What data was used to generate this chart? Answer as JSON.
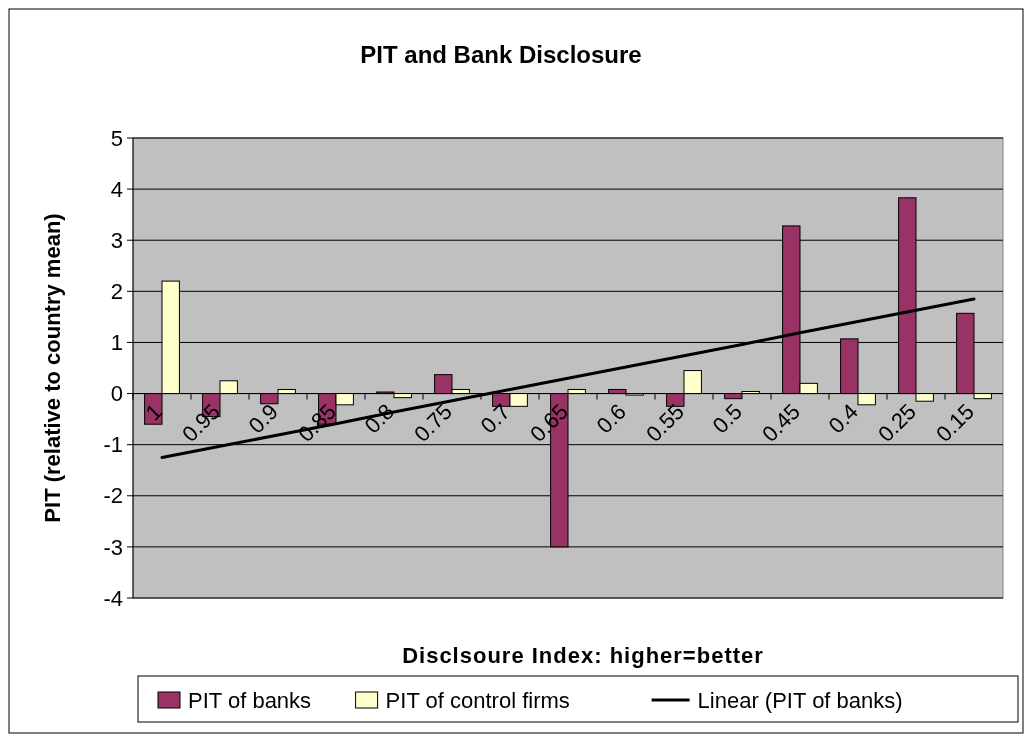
{
  "chart_data": {
    "type": "bar",
    "title": "PIT and Bank Disclosure",
    "xlabel": "Disclsoure Index: higher=better",
    "ylabel": "PIT (relative to country mean)",
    "categories": [
      "1",
      "0.95",
      "0.9",
      "0.85",
      "0.8",
      "0.75",
      "0.7",
      "0.65",
      "0.6",
      "0.55",
      "0.5",
      "0.45",
      "0.4",
      "0.25",
      "0.15"
    ],
    "series": [
      {
        "name": "PIT of banks",
        "color": "#993366",
        "values": [
          -0.6,
          -0.45,
          -0.2,
          -0.6,
          0.03,
          0.37,
          -0.25,
          -3.0,
          0.08,
          -0.25,
          -0.1,
          3.28,
          1.07,
          3.83,
          1.57
        ]
      },
      {
        "name": "PIT of control firms",
        "color": "#ffffcc",
        "values": [
          2.2,
          0.25,
          0.08,
          -0.22,
          -0.08,
          0.08,
          -0.25,
          0.08,
          -0.03,
          0.45,
          0.04,
          0.2,
          -0.22,
          -0.15,
          -0.1
        ]
      },
      {
        "name": "Linear (PIT of banks)",
        "type": "line",
        "color": "#000000",
        "values": [
          -1.25,
          -1.03,
          -0.81,
          -0.59,
          -0.36,
          -0.14,
          0.08,
          0.3,
          0.52,
          0.74,
          0.96,
          1.19,
          1.41,
          1.63,
          1.85
        ]
      }
    ],
    "ylim": [
      -4,
      5
    ],
    "yticks": [
      -4,
      -3,
      -2,
      -1,
      0,
      1,
      2,
      3,
      4,
      5
    ],
    "grid": "y",
    "legend": "bottom"
  }
}
